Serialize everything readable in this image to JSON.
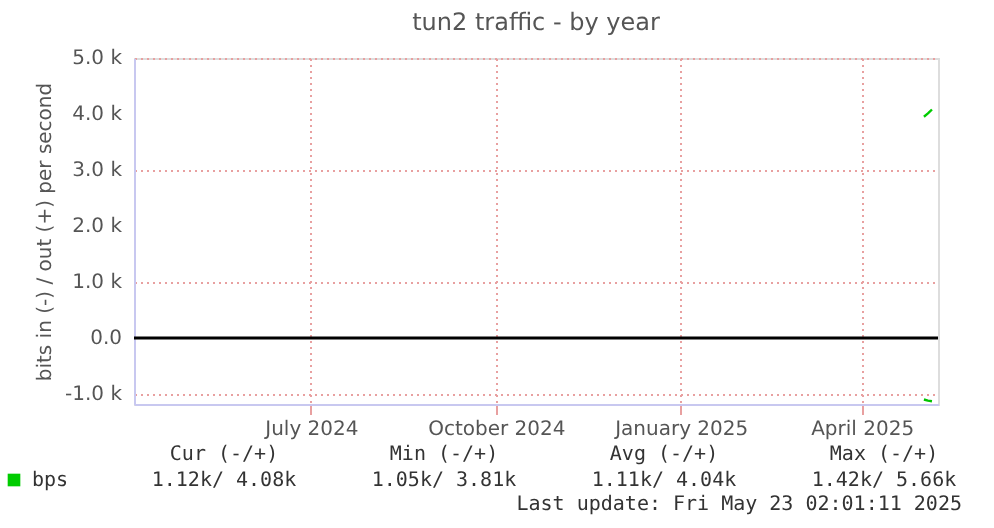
{
  "chart_data": {
    "type": "line",
    "title": "tun2 traffic - by year",
    "ylabel": "bits in (-) / out (+) per second",
    "xlim": [
      "2024-04-18",
      "2025-05-23"
    ],
    "xticks": [
      {
        "value": "2024-07-15",
        "label": "July 2024"
      },
      {
        "value": "2024-10-15",
        "label": "October 2024"
      },
      {
        "value": "2025-01-15",
        "label": "January 2025"
      },
      {
        "value": "2025-04-15",
        "label": "April 2025"
      }
    ],
    "ylim": [
      -1180,
      5000
    ],
    "yticks": [
      {
        "value": -1000,
        "label": "-1.0 k"
      },
      {
        "value": 0,
        "label": "0.0"
      },
      {
        "value": 1000,
        "label": "1.0 k"
      },
      {
        "value": 2000,
        "label": "2.0 k"
      },
      {
        "value": 3000,
        "label": "3.0 k"
      },
      {
        "value": 4000,
        "label": "4.0 k"
      },
      {
        "value": 5000,
        "label": "5.0 k"
      }
    ],
    "series": [
      {
        "name": "bps",
        "color": "#00cc00",
        "x": [
          "2025-05-16",
          "2025-05-18",
          "2025-05-20"
        ],
        "values": [
          3950,
          4010,
          4080
        ]
      },
      {
        "color": "#00c400",
        "x": [
          "2025-05-16",
          "2025-05-18",
          "2025-05-20"
        ],
        "values": [
          -1100,
          -1120,
          -1130
        ]
      }
    ],
    "ref_lines": [
      {
        "axis": "y",
        "value": 0,
        "color": "#000000"
      }
    ],
    "grid": true,
    "legend": "bottom left",
    "annotations": [
      "Cur (-/+)",
      "Min (-/+)",
      "Avg (-/+)",
      "Max (-/+)",
      "1.12k/ 4.08k",
      "1.05k/ 3.81k",
      "1.11k/ 4.04k",
      "1.42k/ 5.66k",
      "Last update: Fri May 23 02:01:11 2025"
    ]
  }
}
